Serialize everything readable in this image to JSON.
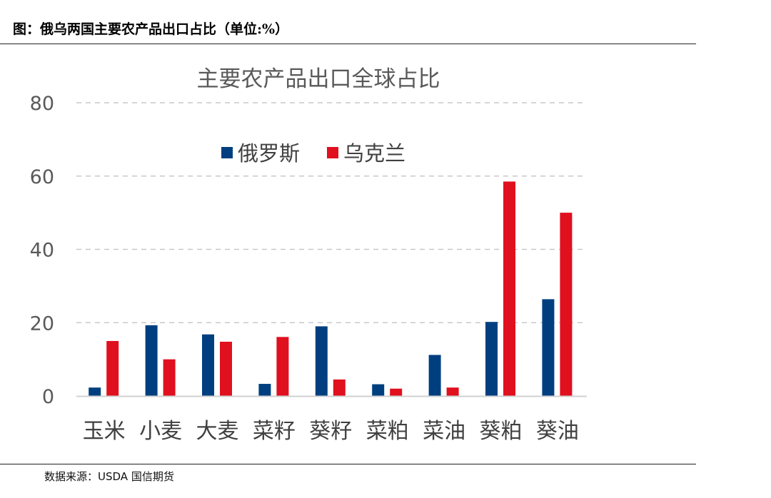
{
  "caption": "图：俄乌两国主要农产品出口占比（单位:%）",
  "source": "数据来源：USDA  国信期货",
  "colors": {
    "russia": "#003F7F",
    "ukraine": "#E0101E",
    "grid": "#C8C8C8",
    "axis": "#D0D0D0"
  },
  "chart_data": {
    "type": "bar",
    "title": "主要农产品出口全球占比",
    "xlabel": "",
    "ylabel": "",
    "ylim": [
      0,
      80
    ],
    "yticks": [
      "0",
      "20",
      "40",
      "60",
      "80"
    ],
    "grid": true,
    "legend_position": "top-left",
    "categories": [
      "玉米",
      "小麦",
      "大麦",
      "菜籽",
      "葵籽",
      "菜粕",
      "菜油",
      "葵粕",
      "葵油"
    ],
    "series": [
      {
        "name": "俄罗斯",
        "values": [
          2.3,
          19.3,
          16.8,
          3.3,
          19.0,
          3.2,
          11.2,
          20.2,
          26.4
        ]
      },
      {
        "name": "乌克兰",
        "values": [
          15.0,
          10.0,
          14.8,
          16.1,
          4.5,
          2.0,
          2.3,
          58.5,
          50.0
        ]
      }
    ]
  }
}
